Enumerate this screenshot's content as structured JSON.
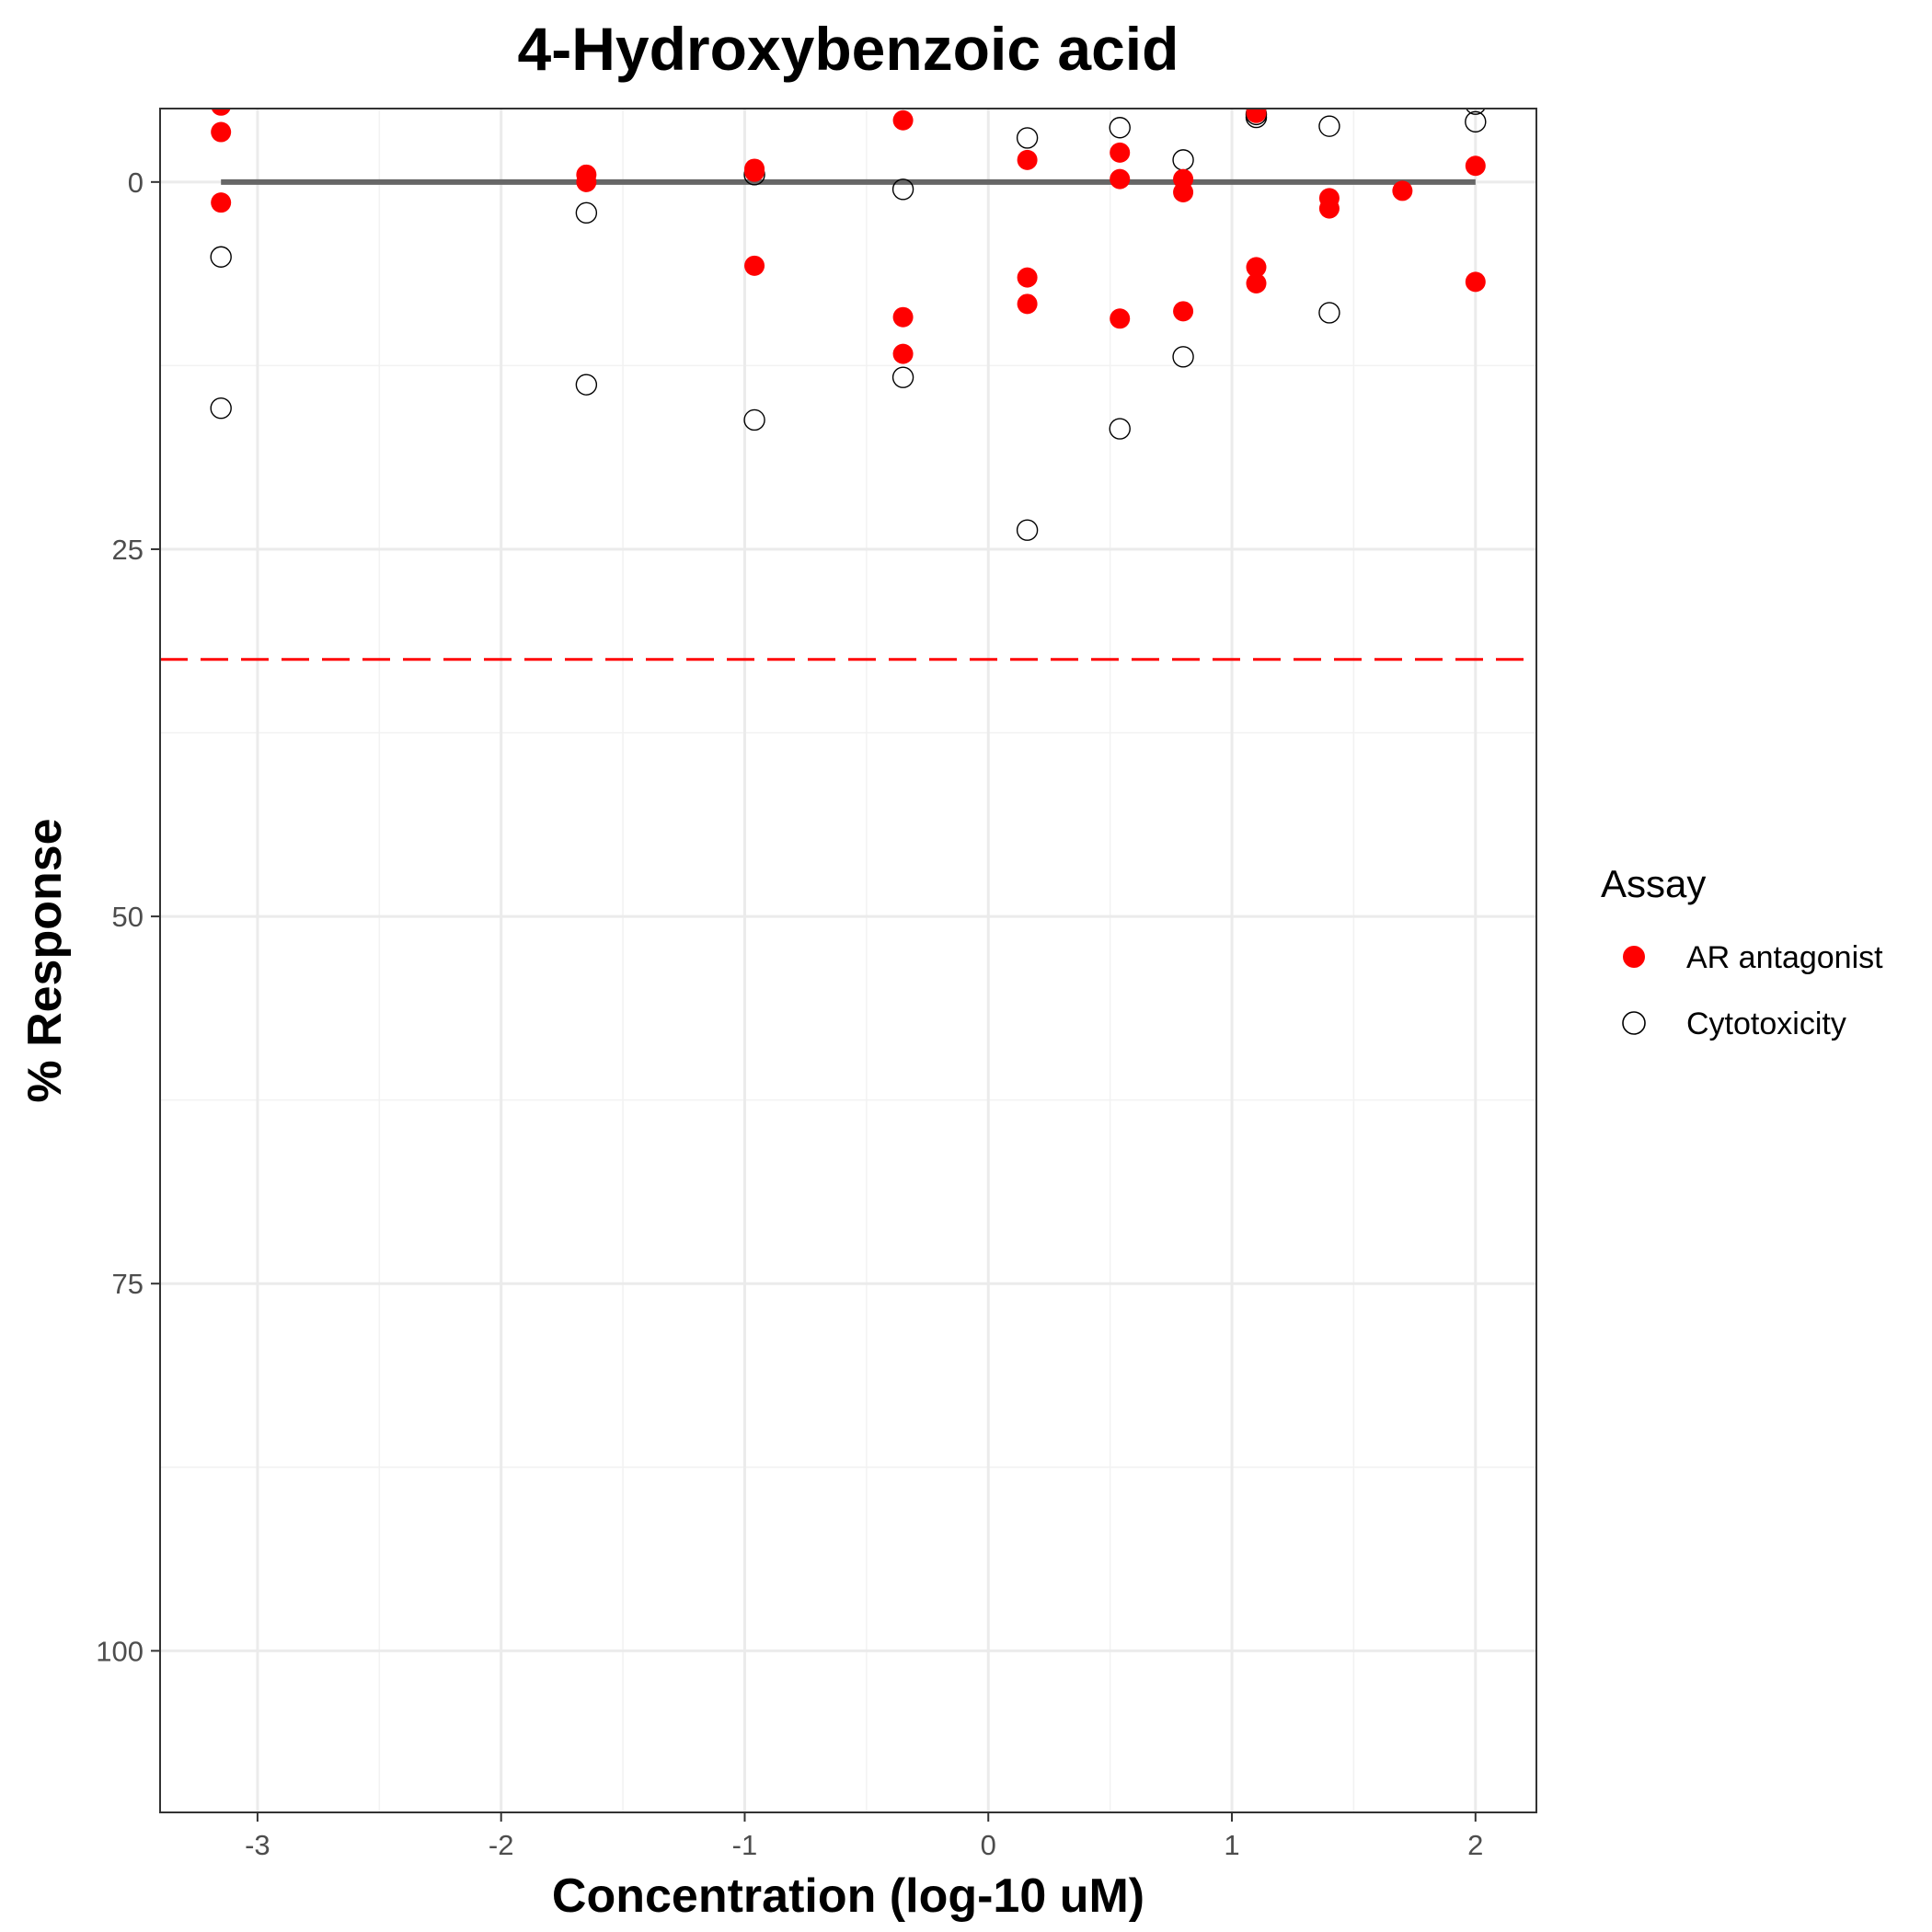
{
  "chart_data": {
    "type": "scatter",
    "title": "4-Hydroxybenzoic acid",
    "xlabel": "Concentration (log-10 uM)",
    "ylabel": "% Response",
    "xlim": [
      -3.4,
      2.25
    ],
    "ylim": [
      111,
      -5
    ],
    "y_reversed": true,
    "x_ticks": [
      -3,
      -2,
      -1,
      0,
      1,
      2
    ],
    "x_tick_labels": [
      "-3",
      "-2",
      "-1",
      "0",
      "1",
      "2"
    ],
    "y_ticks": [
      0,
      25,
      50,
      75,
      100
    ],
    "y_tick_labels": [
      "0",
      "25",
      "50",
      "75",
      "100"
    ],
    "grid": true,
    "legend": {
      "title": "Assay",
      "placement": "right"
    },
    "series": [
      {
        "name": "AR antagonist",
        "color": "#ff0000",
        "marker": "filled-circle",
        "points": [
          {
            "x": -3.15,
            "y": -5.2
          },
          {
            "x": -3.15,
            "y": -3.4
          },
          {
            "x": -3.15,
            "y": 1.4
          },
          {
            "x": -1.65,
            "y": -0.5
          },
          {
            "x": -1.65,
            "y": 0.0
          },
          {
            "x": -0.96,
            "y": -0.9
          },
          {
            "x": -0.96,
            "y": -0.7
          },
          {
            "x": -0.96,
            "y": 5.7
          },
          {
            "x": -0.35,
            "y": -4.2
          },
          {
            "x": -0.35,
            "y": 9.2
          },
          {
            "x": -0.35,
            "y": 11.7
          },
          {
            "x": 0.16,
            "y": -1.5
          },
          {
            "x": 0.16,
            "y": 6.5
          },
          {
            "x": 0.16,
            "y": 8.3
          },
          {
            "x": 0.54,
            "y": -2.0
          },
          {
            "x": 0.54,
            "y": -0.2
          },
          {
            "x": 0.54,
            "y": 9.3
          },
          {
            "x": 0.8,
            "y": -0.2
          },
          {
            "x": 0.8,
            "y": 0.7
          },
          {
            "x": 0.8,
            "y": 8.8
          },
          {
            "x": 1.1,
            "y": -5.0
          },
          {
            "x": 1.1,
            "y": -4.7
          },
          {
            "x": 1.1,
            "y": 5.8
          },
          {
            "x": 1.1,
            "y": 6.9
          },
          {
            "x": 1.4,
            "y": 1.1
          },
          {
            "x": 1.4,
            "y": 1.8
          },
          {
            "x": 1.7,
            "y": -5.7
          },
          {
            "x": 1.7,
            "y": 0.6
          },
          {
            "x": 2.0,
            "y": -1.1
          },
          {
            "x": 2.0,
            "y": 6.8
          }
        ]
      },
      {
        "name": "Cytotoxicity",
        "color": "#000000",
        "marker": "open-circle",
        "points": [
          {
            "x": -3.15,
            "y": 5.1
          },
          {
            "x": -3.15,
            "y": 15.4
          },
          {
            "x": -1.65,
            "y": 2.1
          },
          {
            "x": -1.65,
            "y": 13.8
          },
          {
            "x": -0.96,
            "y": -0.5
          },
          {
            "x": -0.96,
            "y": 16.2
          },
          {
            "x": -0.35,
            "y": 0.5
          },
          {
            "x": -0.35,
            "y": 13.3
          },
          {
            "x": 0.16,
            "y": -3.0
          },
          {
            "x": 0.16,
            "y": 23.7
          },
          {
            "x": 0.54,
            "y": -3.7
          },
          {
            "x": 0.54,
            "y": 16.8
          },
          {
            "x": 0.8,
            "y": -1.5
          },
          {
            "x": 0.8,
            "y": 11.9
          },
          {
            "x": 1.1,
            "y": -4.6
          },
          {
            "x": 1.1,
            "y": -4.4
          },
          {
            "x": 1.4,
            "y": -3.8
          },
          {
            "x": 1.4,
            "y": 8.9
          },
          {
            "x": 2.0,
            "y": -5.3
          },
          {
            "x": 2.0,
            "y": -4.1
          }
        ]
      }
    ],
    "fit_line": {
      "color": "#666666",
      "x": [
        -3.15,
        2.0
      ],
      "y": [
        0,
        0
      ]
    },
    "threshold_line": {
      "color": "#ff0000",
      "y": 32.5,
      "style": "dashed"
    }
  }
}
